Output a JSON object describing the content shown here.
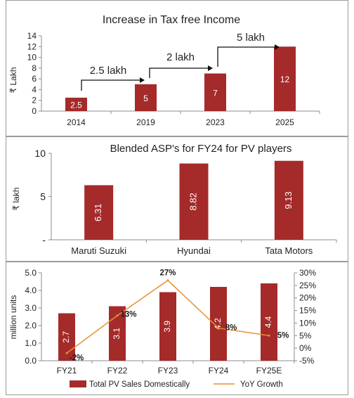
{
  "colors": {
    "bar": "#a52a2a",
    "line": "#e8912f",
    "axis": "#8c8c8c",
    "text": "#222222",
    "label": "#ffffff"
  },
  "chart_data": [
    {
      "type": "bar",
      "title": "Increase in Tax free Income",
      "ylabel": "₹ Lakh",
      "ylim": [
        0,
        14
      ],
      "yticks": [
        "0",
        "2",
        "4",
        "6",
        "8",
        "10",
        "12",
        "14"
      ],
      "categories": [
        "2014",
        "2019",
        "2023",
        "2025"
      ],
      "values": [
        2.5,
        5,
        7,
        12
      ],
      "value_labels": [
        "2.5",
        "5",
        "7",
        "12"
      ],
      "annotations": [
        "2.5 lakh",
        "2 lakh",
        "5 lakh"
      ]
    },
    {
      "type": "bar",
      "title": "Blended ASP's for FY24 for PV players",
      "ylabel": "₹ lakh",
      "ylim": [
        0,
        10
      ],
      "yticks": [
        "-",
        "5",
        "10"
      ],
      "categories": [
        "Maruti Suzuki",
        "Hyundai",
        "Tata Motors"
      ],
      "values": [
        6.31,
        8.82,
        9.13
      ],
      "value_labels": [
        "6.31",
        "8.82",
        "9.13"
      ]
    },
    {
      "type": "bar",
      "ylabel": "million units",
      "ylim": [
        0,
        5
      ],
      "yticks": [
        "0.0",
        "1.0",
        "2.0",
        "3.0",
        "4.0",
        "5.0"
      ],
      "y2lim": [
        -5,
        30
      ],
      "y2ticks": [
        "-5%",
        "0%",
        "5%",
        "10%",
        "15%",
        "20%",
        "25%",
        "30%"
      ],
      "categories": [
        "FY21",
        "FY22",
        "FY23",
        "FY24",
        "FY25E"
      ],
      "series": [
        {
          "name": "Total PV Sales Domestically",
          "type": "bar",
          "values": [
            2.7,
            3.1,
            3.9,
            4.2,
            4.4
          ],
          "value_labels": [
            "2.7",
            "3.1",
            "3.9",
            "4.2",
            "4.4"
          ]
        },
        {
          "name": "YoY Growth",
          "type": "line",
          "values": [
            -2,
            13,
            27,
            8,
            5
          ],
          "value_labels": [
            "-2%",
            "13%",
            "27%",
            "8%",
            "5%"
          ]
        }
      ],
      "legend": "bottom"
    }
  ]
}
